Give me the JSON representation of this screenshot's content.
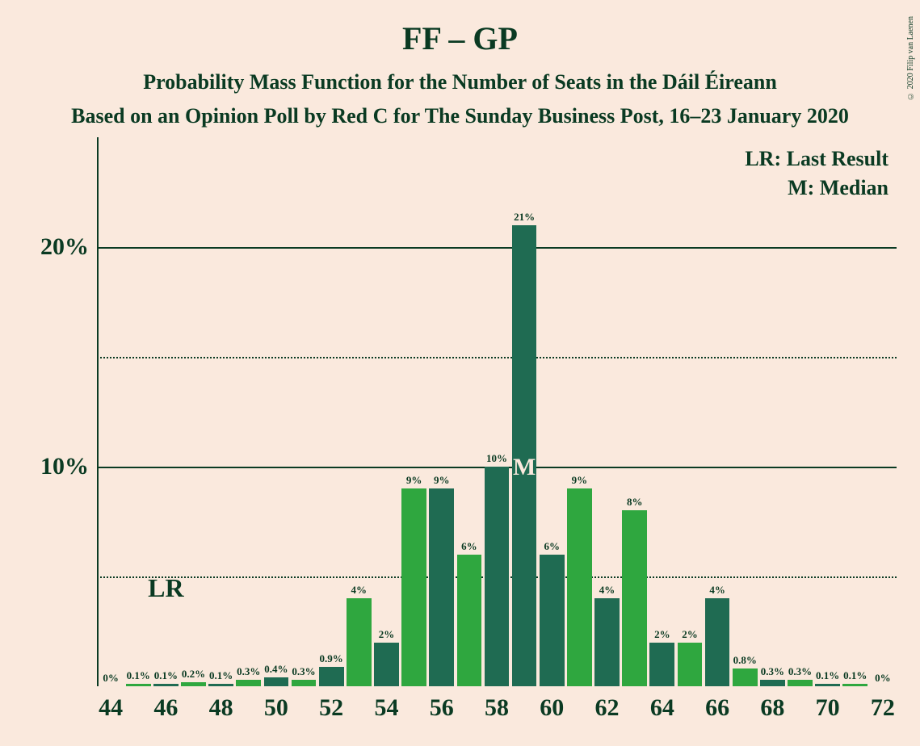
{
  "title": "FF – GP",
  "subtitle1": "Probability Mass Function for the Number of Seats in the Dáil Éireann",
  "subtitle2": "Based on an Opinion Poll by Red C for The Sunday Business Post, 16–23 January 2020",
  "copyright": "© 2020 Filip van Laenen",
  "legend": {
    "lr": "LR: Last Result",
    "m": "M: Median"
  },
  "annotations": {
    "lr_text": "LR",
    "m_text": "M",
    "lr_seat": 46,
    "m_seat": 59
  },
  "colors": {
    "background": "#fae9dd",
    "text": "#0a3a22",
    "bar_dark": "#1f6b52",
    "bar_light": "#2fa73f"
  },
  "chart": {
    "type": "bar",
    "y_max_pct": 25,
    "y_gridlines_solid": [
      10,
      20
    ],
    "y_gridlines_dotted": [
      5,
      15
    ],
    "y_tick_labels": [
      {
        "v": 10,
        "t": "10%"
      },
      {
        "v": 20,
        "t": "20%"
      }
    ],
    "x_min": 44,
    "x_max": 72,
    "x_tick_step": 2,
    "bars": [
      {
        "seat": 44,
        "value": 0,
        "label": "0%",
        "color": "dark"
      },
      {
        "seat": 45,
        "value": 0.1,
        "label": "0.1%",
        "color": "light"
      },
      {
        "seat": 46,
        "value": 0.1,
        "label": "0.1%",
        "color": "dark"
      },
      {
        "seat": 47,
        "value": 0.2,
        "label": "0.2%",
        "color": "light"
      },
      {
        "seat": 48,
        "value": 0.1,
        "label": "0.1%",
        "color": "dark"
      },
      {
        "seat": 49,
        "value": 0.3,
        "label": "0.3%",
        "color": "light"
      },
      {
        "seat": 50,
        "value": 0.4,
        "label": "0.4%",
        "color": "dark"
      },
      {
        "seat": 51,
        "value": 0.3,
        "label": "0.3%",
        "color": "light"
      },
      {
        "seat": 52,
        "value": 0.9,
        "label": "0.9%",
        "color": "dark"
      },
      {
        "seat": 53,
        "value": 4,
        "label": "4%",
        "color": "light"
      },
      {
        "seat": 54,
        "value": 2,
        "label": "2%",
        "color": "dark"
      },
      {
        "seat": 55,
        "value": 9,
        "label": "9%",
        "color": "light"
      },
      {
        "seat": 56,
        "value": 9,
        "label": "9%",
        "color": "dark"
      },
      {
        "seat": 57,
        "value": 6,
        "label": "6%",
        "color": "light"
      },
      {
        "seat": 58,
        "value": 10,
        "label": "10%",
        "color": "dark"
      },
      {
        "seat": 59,
        "value": 21,
        "label": "21%",
        "color": "light",
        "median": true
      },
      {
        "seat": 60,
        "value": 6,
        "label": "6%",
        "color": "dark"
      },
      {
        "seat": 61,
        "value": 9,
        "label": "9%",
        "color": "light"
      },
      {
        "seat": 62,
        "value": 4,
        "label": "4%",
        "color": "dark"
      },
      {
        "seat": 63,
        "value": 8,
        "label": "8%",
        "color": "light"
      },
      {
        "seat": 64,
        "value": 2,
        "label": "2%",
        "color": "dark"
      },
      {
        "seat": 65,
        "value": 2,
        "label": "2%",
        "color": "light"
      },
      {
        "seat": 66,
        "value": 4,
        "label": "4%",
        "color": "dark"
      },
      {
        "seat": 67,
        "value": 0.8,
        "label": "0.8%",
        "color": "light"
      },
      {
        "seat": 68,
        "value": 0.3,
        "label": "0.3%",
        "color": "dark"
      },
      {
        "seat": 69,
        "value": 0.3,
        "label": "0.3%",
        "color": "light"
      },
      {
        "seat": 70,
        "value": 0.1,
        "label": "0.1%",
        "color": "dark"
      },
      {
        "seat": 71,
        "value": 0.1,
        "label": "0.1%",
        "color": "light"
      },
      {
        "seat": 72,
        "value": 0,
        "label": "0%",
        "color": "dark"
      }
    ]
  },
  "fonts": {
    "title_size": 40,
    "subtitle_size": 26
  }
}
